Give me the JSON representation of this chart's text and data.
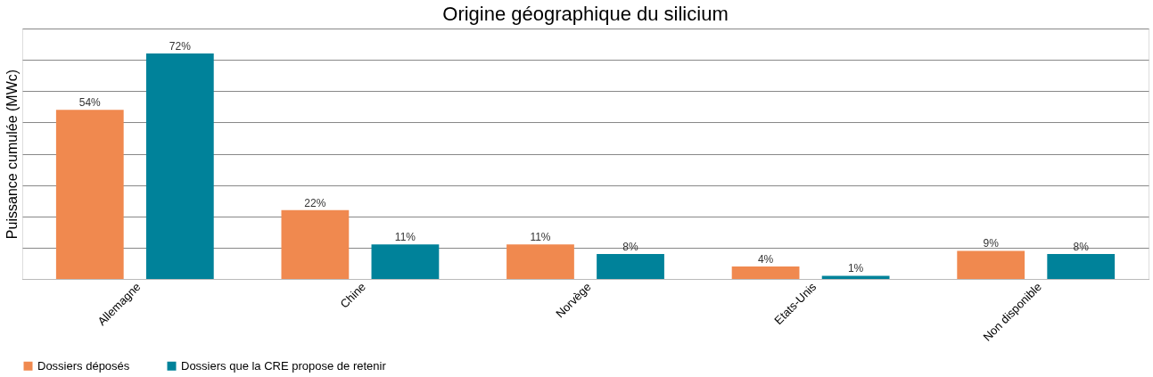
{
  "chart_data": {
    "type": "bar",
    "title": "Origine géographique du silicium",
    "ylabel": "Puissance cumulée (MWc)",
    "categories": [
      "Allemagne",
      "Chine",
      "Norvège",
      "Etats-Unis",
      "Non disponible"
    ],
    "series": [
      {
        "name": "Dossiers déposés",
        "color": "#f0894f",
        "values": [
          54,
          22,
          11,
          4,
          9
        ],
        "value_labels": [
          "54%",
          "22%",
          "11%",
          "4%",
          "9%"
        ]
      },
      {
        "name": "Dossiers que la CRE propose de retenir",
        "color": "#00829a",
        "values": [
          72,
          11,
          8,
          1,
          8
        ],
        "value_labels": [
          "72%",
          "11%",
          "8%",
          "1%",
          "8%"
        ]
      }
    ],
    "ylim": [
      0,
      80
    ],
    "yticks": [
      {
        "value": 0,
        "label": null
      },
      {
        "value": 10,
        "label": null
      },
      {
        "value": 20,
        "label": null
      },
      {
        "value": 30,
        "label": null
      },
      {
        "value": 40,
        "label": null
      },
      {
        "value": 50,
        "label": null
      },
      {
        "value": 60,
        "label": null
      },
      {
        "value": 70,
        "label": null
      },
      {
        "value": 80,
        "label": null
      }
    ],
    "tick_labels": "x",
    "grid": "y",
    "legend": "bottom"
  }
}
